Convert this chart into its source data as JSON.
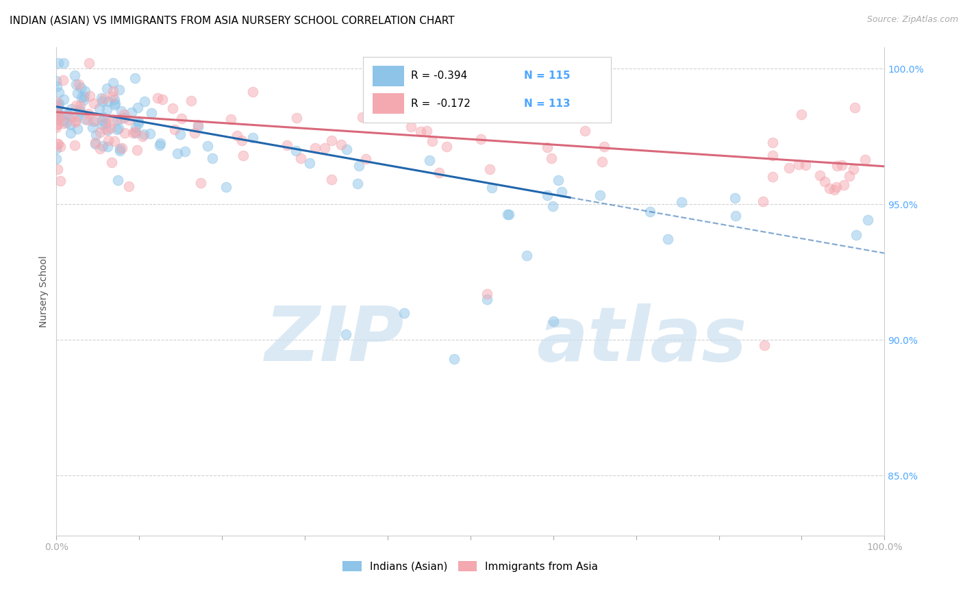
{
  "title": "INDIAN (ASIAN) VS IMMIGRANTS FROM ASIA NURSERY SCHOOL CORRELATION CHART",
  "source": "Source: ZipAtlas.com",
  "ylabel": "Nursery School",
  "xlim": [
    0.0,
    1.0
  ],
  "ylim": [
    0.828,
    1.008
  ],
  "yticks": [
    0.85,
    0.9,
    0.95,
    1.0
  ],
  "ytick_labels": [
    "85.0%",
    "90.0%",
    "95.0%",
    "100.0%"
  ],
  "xtick_labels": [
    "0.0%",
    "100.0%"
  ],
  "legend_r_blue": "R = -0.394",
  "legend_n_blue": "N = 115",
  "legend_r_pink": "R =  -0.172",
  "legend_n_pink": "N = 113",
  "legend_label_blue": "Indians (Asian)",
  "legend_label_pink": "Immigrants from Asia",
  "blue_color": "#8ec4e8",
  "pink_color": "#f4a8b0",
  "blue_line_color": "#2166ac",
  "pink_line_color": "#d9687a",
  "blue_line_solid_end": 0.62,
  "blue_line_x0": 0.0,
  "blue_line_y0": 0.986,
  "blue_line_slope": -0.054,
  "pink_line_x0": 0.0,
  "pink_line_y0": 0.984,
  "pink_line_slope": -0.02,
  "grid_color": "#cccccc",
  "tick_color": "#aaaaaa",
  "ytick_color": "#4da6ff",
  "xtick_color": "#555555",
  "title_fontsize": 11,
  "source_fontsize": 9,
  "axis_label_fontsize": 10,
  "tick_fontsize": 10,
  "legend_fontsize": 11,
  "watermark_color": "#cce0f0",
  "background_color": "#ffffff"
}
